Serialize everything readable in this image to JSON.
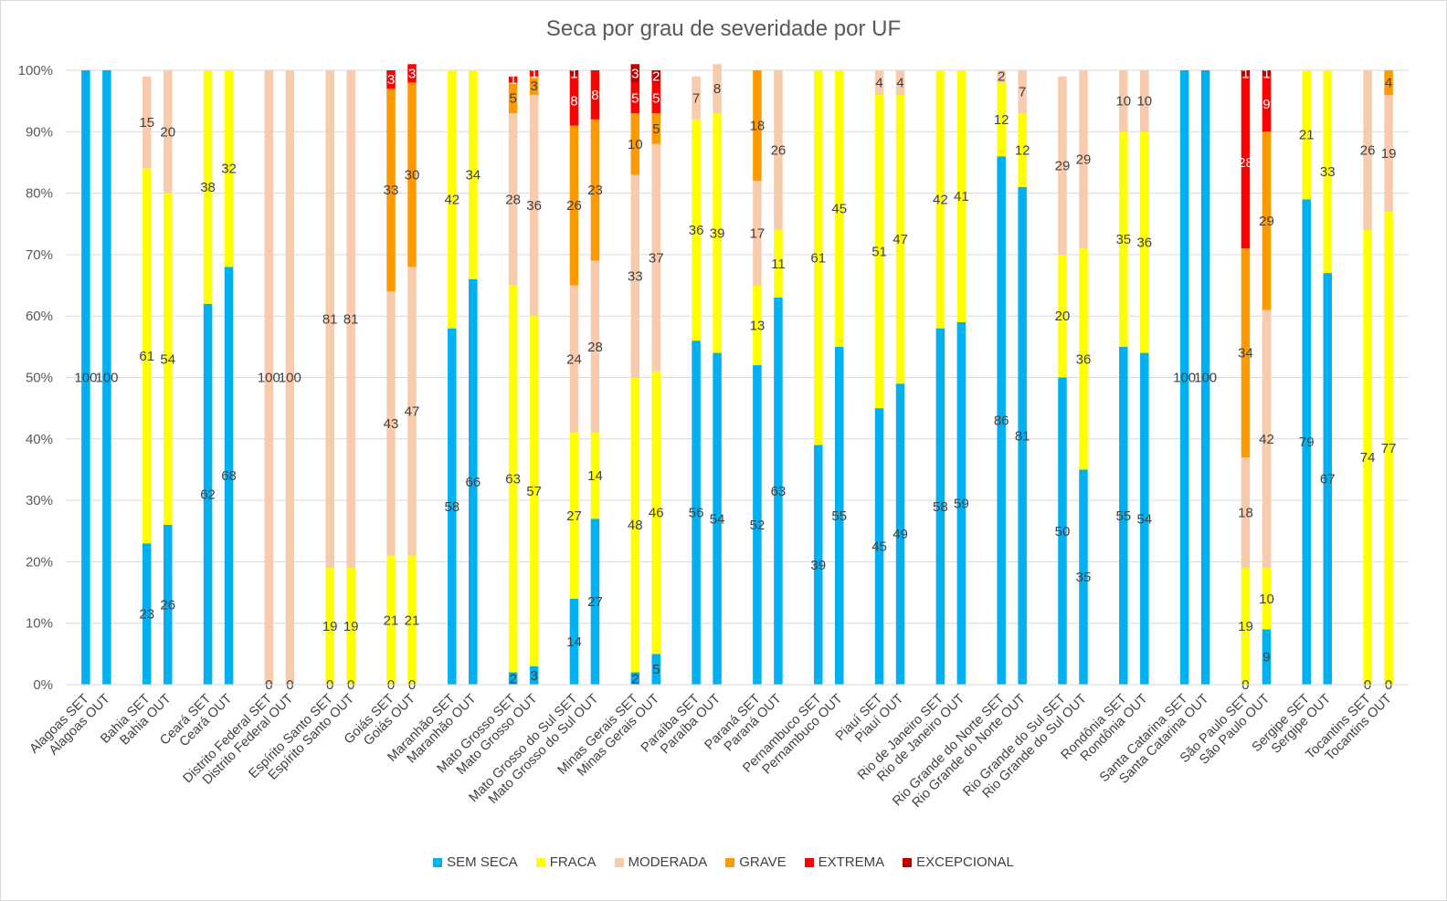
{
  "chart_data": {
    "type": "bar",
    "stacked": "percent",
    "title": "Seca por grau de severidade por UF",
    "xlabel": "",
    "ylabel": "",
    "ylim": [
      0,
      100
    ],
    "yticks": [
      "0%",
      "10%",
      "20%",
      "30%",
      "40%",
      "50%",
      "60%",
      "70%",
      "80%",
      "90%",
      "100%"
    ],
    "legend_position": "bottom",
    "grid": true,
    "categories": [
      "Alagoas SET",
      "Alagoas OUT",
      "Bahia SET",
      "Bahia OUT",
      "Ceará SET",
      "Ceará OUT",
      "Distrito Federal SET",
      "Distrito Federal OUT",
      "Espírito Santo SET",
      "Espírito Santo OUT",
      "Goiás SET",
      "Goiás OUT",
      "Maranhão SET",
      "Maranhão OUT",
      "Mato Grosso SET",
      "Mato Grosso OUT",
      "Mato Grosso do Sul SET",
      "Mato Grosso do Sul OUT",
      "Minas Gerais SET",
      "Minas Gerais OUT",
      "Paraíba SET",
      "Paraíba OUT",
      "Paraná SET",
      "Paraná OUT",
      "Pernambuco SET",
      "Pernambuco OUT",
      "Piauí SET",
      "Piauí OUT",
      "Rio de Janeiro SET",
      "Rio de Janeiro OUT",
      "Rio Grande do Norte SET",
      "Rio Grande do Norte OUT",
      "Rio Grande do Sul SET",
      "Rio Grande do Sul OUT",
      "Rondônia SET",
      "Rondônia OUT",
      "Santa Catarina SET",
      "Santa Catarina OUT",
      "São Paulo SET",
      "São Paulo OUT",
      "Sergipe SET",
      "Sergipe OUT",
      "Tocantins SET",
      "Tocantins OUT"
    ],
    "series": [
      {
        "name": "SEM SECA",
        "color": "#00B0F0",
        "label_color": "#404040",
        "values": [
          100,
          100,
          23,
          26,
          62,
          68,
          0,
          0,
          0,
          0,
          0,
          0,
          58,
          66,
          2,
          3,
          14,
          27,
          2,
          5,
          56,
          54,
          52,
          63,
          39,
          55,
          45,
          49,
          58,
          59,
          86,
          81,
          50,
          35,
          55,
          54,
          100,
          100,
          0,
          9,
          79,
          67,
          0,
          0
        ]
      },
      {
        "name": "FRACA",
        "color": "#FFFF00",
        "label_color": "#404040",
        "values": [
          0,
          0,
          61,
          54,
          38,
          32,
          0,
          0,
          19,
          19,
          21,
          21,
          42,
          34,
          63,
          57,
          27,
          14,
          48,
          46,
          36,
          39,
          13,
          11,
          61,
          45,
          51,
          47,
          42,
          41,
          12,
          12,
          20,
          36,
          35,
          36,
          0,
          0,
          19,
          10,
          21,
          33,
          74,
          77
        ]
      },
      {
        "name": "MODERADA",
        "color": "#F8CBAD",
        "label_color": "#404040",
        "values": [
          0,
          0,
          15,
          20,
          0,
          0,
          100,
          100,
          81,
          81,
          43,
          47,
          0,
          0,
          28,
          36,
          24,
          28,
          33,
          37,
          7,
          8,
          17,
          26,
          0,
          0,
          4,
          4,
          0,
          0,
          2,
          7,
          29,
          29,
          10,
          10,
          0,
          0,
          18,
          42,
          0,
          0,
          26,
          19
        ]
      },
      {
        "name": "GRAVE",
        "color": "#FF9900",
        "label_color": "#404040",
        "values": [
          0,
          0,
          0,
          0,
          0,
          0,
          0,
          0,
          0,
          0,
          33,
          30,
          0,
          0,
          5,
          3,
          26,
          23,
          10,
          5,
          0,
          0,
          18,
          0,
          0,
          0,
          0,
          0,
          0,
          0,
          0,
          0,
          0,
          0,
          0,
          0,
          0,
          0,
          34,
          29,
          0,
          0,
          0,
          4
        ]
      },
      {
        "name": "EXTREMA",
        "color": "#FF0000",
        "label_color": "#FFFFFF",
        "values": [
          0,
          0,
          0,
          0,
          0,
          0,
          0,
          0,
          0,
          0,
          3,
          3,
          0,
          0,
          1,
          1,
          8,
          8,
          5,
          5,
          0,
          0,
          0,
          0,
          0,
          0,
          0,
          0,
          0,
          0,
          0,
          0,
          0,
          0,
          0,
          0,
          0,
          0,
          28,
          9,
          0,
          0,
          0,
          0
        ]
      },
      {
        "name": "EXCEPCIONAL",
        "color": "#C00000",
        "label_color": "#FFFFFF",
        "values": [
          0,
          0,
          0,
          0,
          0,
          0,
          0,
          0,
          0,
          0,
          0,
          0,
          0,
          0,
          0,
          0,
          1,
          0,
          3,
          2,
          0,
          0,
          0,
          0,
          0,
          0,
          0,
          0,
          0,
          0,
          0,
          0,
          0,
          0,
          0,
          0,
          0,
          0,
          1,
          1,
          0,
          0,
          0,
          0
        ]
      }
    ]
  }
}
